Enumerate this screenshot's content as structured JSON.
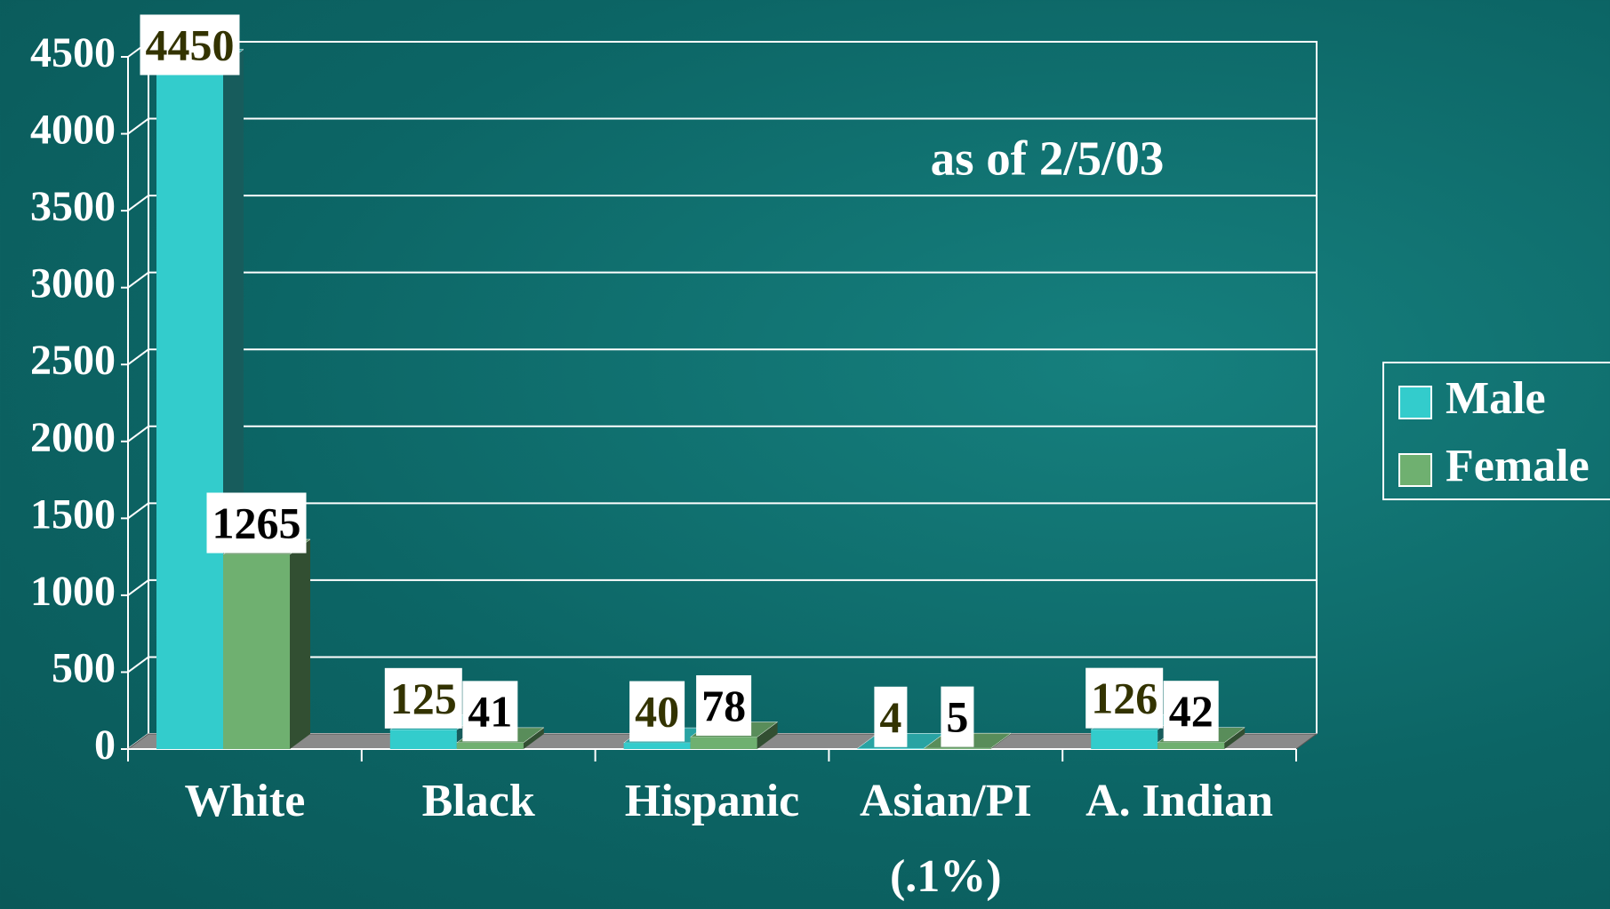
{
  "chart_data": {
    "type": "bar3d",
    "subtitle": "as of 2/5/03",
    "note": "(.1%)",
    "categories": [
      "White",
      "Black",
      "Hispanic",
      "Asian/PI",
      "A. Indian"
    ],
    "series": [
      {
        "name": "Male",
        "color": "#33cccc",
        "values": [
          4450,
          125,
          40,
          4,
          126
        ]
      },
      {
        "name": "Female",
        "color": "#6fb070",
        "values": [
          1265,
          41,
          78,
          5,
          42
        ]
      }
    ],
    "ylim": [
      0,
      4500
    ],
    "yticks": [
      0,
      500,
      1000,
      1500,
      2000,
      2500,
      3000,
      3500,
      4000,
      4500
    ],
    "grid": true,
    "legend": "right"
  }
}
